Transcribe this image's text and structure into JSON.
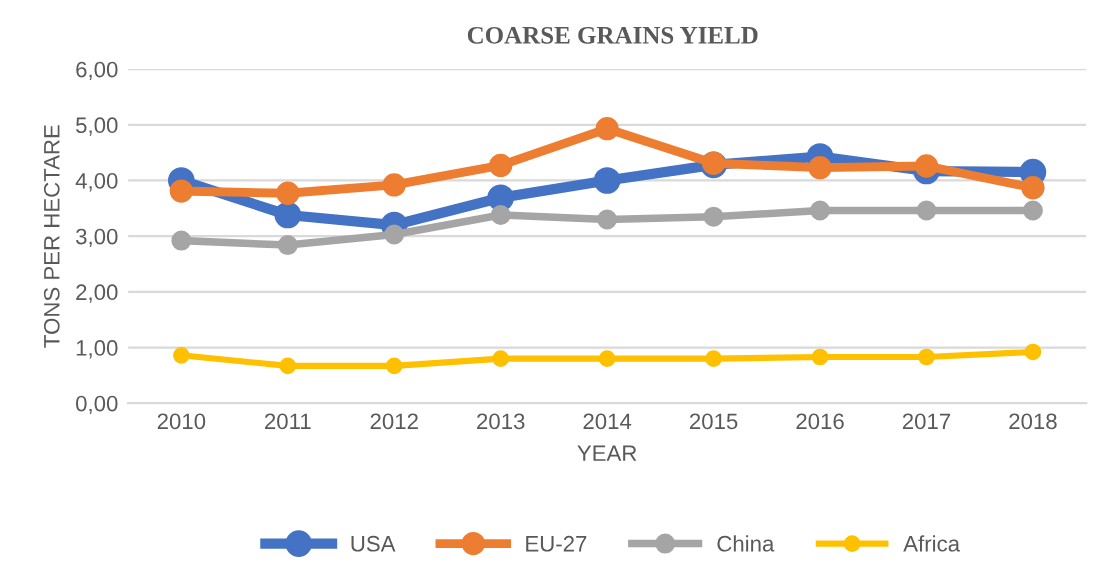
{
  "chart_data": {
    "type": "line",
    "title": "COARSE GRAINS YIELD",
    "xlabel": "YEAR",
    "ylabel": "TONS PER HECTARE",
    "categories": [
      "2010",
      "2011",
      "2012",
      "2013",
      "2014",
      "2015",
      "2016",
      "2017",
      "2018"
    ],
    "series": [
      {
        "name": "USA",
        "color": "#4472c4",
        "values": [
          4.0,
          3.38,
          3.2,
          3.69,
          4.0,
          4.28,
          4.43,
          4.17,
          4.15
        ]
      },
      {
        "name": "EU-27",
        "color": "#ed7d31",
        "values": [
          3.81,
          3.77,
          3.92,
          4.27,
          4.93,
          4.31,
          4.23,
          4.26,
          3.87
        ]
      },
      {
        "name": "China",
        "color": "#a5a5a5",
        "values": [
          2.92,
          2.84,
          3.03,
          3.38,
          3.3,
          3.35,
          3.46,
          3.46,
          3.46
        ]
      },
      {
        "name": "Africa",
        "color": "#ffc000",
        "values": [
          0.86,
          0.67,
          0.67,
          0.8,
          0.8,
          0.8,
          0.83,
          0.83,
          0.92
        ]
      }
    ],
    "ylim": [
      0,
      6
    ],
    "yticks": [
      {
        "value": 0,
        "label": "0,00"
      },
      {
        "value": 1,
        "label": "1,00"
      },
      {
        "value": 2,
        "label": "2,00"
      },
      {
        "value": 3,
        "label": "3,00"
      },
      {
        "value": 4,
        "label": "4,00"
      },
      {
        "value": 5,
        "label": "5,00"
      },
      {
        "value": 6,
        "label": "6,00"
      }
    ],
    "grid": "y",
    "legend": "bottom",
    "marker": "circle",
    "line_style": "solid"
  }
}
